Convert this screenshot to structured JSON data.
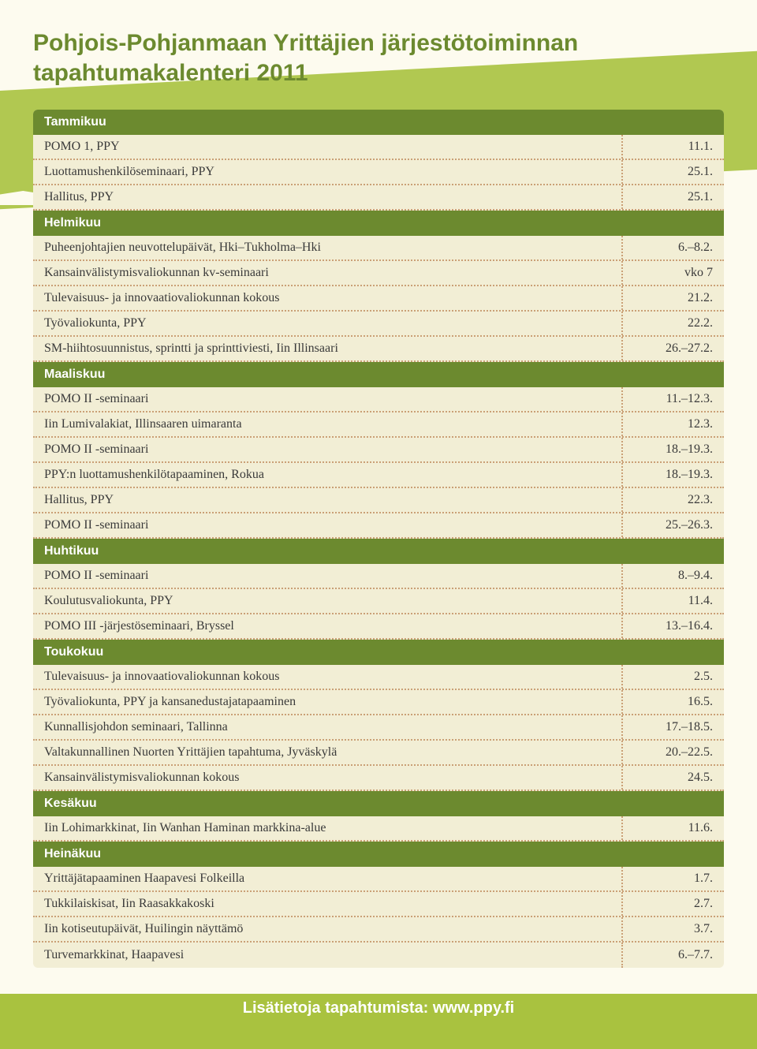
{
  "colors": {
    "accent": "#a9c23f",
    "header": "#6c8a2f",
    "table_bg": "#f2eed5",
    "page_bg": "#fdfbef",
    "dotted": "#caa076",
    "title": "#6c8a2f",
    "text": "#3a3a3a"
  },
  "title_line1": "Pohjois-Pohjanmaan Yrittäjien järjestötoiminnan",
  "title_line2": "tapahtumakalenteri 2011",
  "footer": "Lisätietoja tapahtumista: www.ppy.fi",
  "calendar": [
    {
      "type": "month",
      "label": "Tammikuu"
    },
    {
      "type": "event",
      "name": "POMO 1, PPY",
      "date": "11.1."
    },
    {
      "type": "event",
      "name": "Luottamushenkilöseminaari, PPY",
      "date": "25.1."
    },
    {
      "type": "event",
      "name": "Hallitus, PPY",
      "date": "25.1."
    },
    {
      "type": "month",
      "label": "Helmikuu"
    },
    {
      "type": "event",
      "name": "Puheenjohtajien neuvottelupäivät, Hki–Tukholma–Hki",
      "date": "6.–8.2."
    },
    {
      "type": "event",
      "name": "Kansainvälistymisvaliokunnan kv-seminaari",
      "date": "vko 7"
    },
    {
      "type": "event",
      "name": "Tulevaisuus- ja innovaatiovaliokunnan kokous",
      "date": "21.2."
    },
    {
      "type": "event",
      "name": "Työvaliokunta, PPY",
      "date": "22.2."
    },
    {
      "type": "event",
      "name": "SM-hiihtosuunnistus, sprintti ja sprinttiviesti, Iin Illinsaari",
      "date": "26.–27.2."
    },
    {
      "type": "month",
      "label": "Maaliskuu"
    },
    {
      "type": "event",
      "name": "POMO II -seminaari",
      "date": "11.–12.3."
    },
    {
      "type": "event",
      "name": "Iin Lumivalakiat, Illinsaaren uimaranta",
      "date": "12.3."
    },
    {
      "type": "event",
      "name": "POMO II -seminaari",
      "date": "18.–19.3."
    },
    {
      "type": "event",
      "name": "PPY:n luottamushenkilötapaaminen, Rokua",
      "date": "18.–19.3."
    },
    {
      "type": "event",
      "name": "Hallitus, PPY",
      "date": "22.3."
    },
    {
      "type": "event",
      "name": "POMO II -seminaari",
      "date": "25.–26.3."
    },
    {
      "type": "month",
      "label": "Huhtikuu"
    },
    {
      "type": "event",
      "name": "POMO II -seminaari",
      "date": "8.–9.4."
    },
    {
      "type": "event",
      "name": "Koulutusvaliokunta, PPY",
      "date": "11.4."
    },
    {
      "type": "event",
      "name": "POMO III -järjestöseminaari, Bryssel",
      "date": "13.–16.4."
    },
    {
      "type": "month",
      "label": "Toukokuu"
    },
    {
      "type": "event",
      "name": "Tulevaisuus- ja innovaatiovaliokunnan kokous",
      "date": "2.5."
    },
    {
      "type": "event",
      "name": "Työvaliokunta, PPY ja kansanedustajatapaaminen",
      "date": "16.5."
    },
    {
      "type": "event",
      "name": "Kunnallisjohdon seminaari, Tallinna",
      "date": "17.–18.5."
    },
    {
      "type": "event",
      "name": "Valtakunnallinen Nuorten Yrittäjien tapahtuma, Jyväskylä",
      "date": "20.–22.5."
    },
    {
      "type": "event",
      "name": "Kansainvälistymisvaliokunnan kokous",
      "date": "24.5."
    },
    {
      "type": "month",
      "label": "Kesäkuu"
    },
    {
      "type": "event",
      "name": "Iin Lohimarkkinat, Iin Wanhan Haminan markkina-alue",
      "date": "11.6."
    },
    {
      "type": "month",
      "label": "Heinäkuu"
    },
    {
      "type": "event",
      "name": "Yrittäjätapaaminen Haapavesi Folkeilla",
      "date": "1.7."
    },
    {
      "type": "event",
      "name": "Tukkilaiskisat, Iin Raasakkakoski",
      "date": "2.7."
    },
    {
      "type": "event",
      "name": "Iin kotiseutupäivät, Huilingin näyttämö",
      "date": "3.7."
    },
    {
      "type": "event",
      "name": "Turvemarkkinat, Haapavesi",
      "date": "6.–7.7."
    }
  ]
}
